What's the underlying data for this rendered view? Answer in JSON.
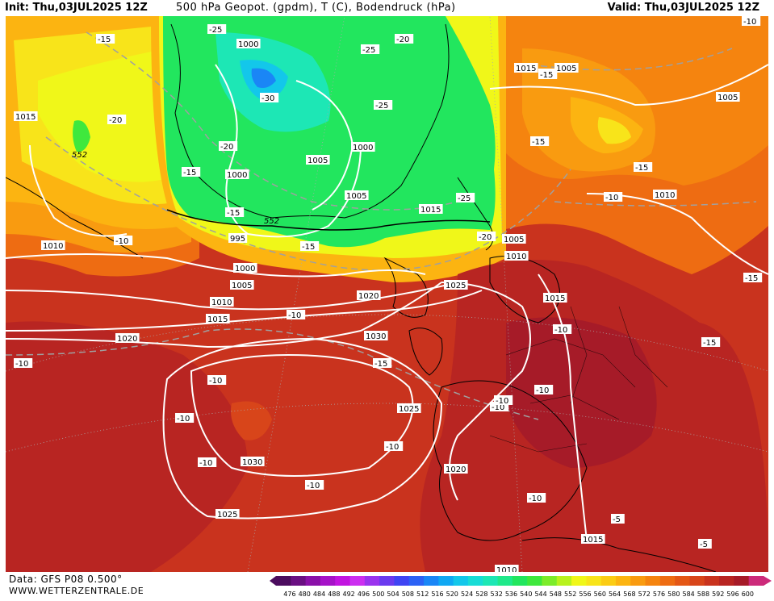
{
  "header": {
    "init": "Init: Thu,03JUL2025 12Z",
    "title": "500 hPa Geopot. (gpdm), T (C), Bodendruck (hPa)",
    "valid": "Valid: Thu,03JUL2025 12Z"
  },
  "footer": {
    "data_source": "Data: GFS P08 0.500°",
    "website": "WWW.WETTERZENTRALE.DE"
  },
  "legend": {
    "ticks": [
      "476",
      "480",
      "484",
      "488",
      "492",
      "496",
      "500",
      "504",
      "508",
      "512",
      "516",
      "520",
      "524",
      "528",
      "532",
      "536",
      "540",
      "544",
      "548",
      "552",
      "556",
      "560",
      "564",
      "568",
      "572",
      "576",
      "580",
      "584",
      "588",
      "592",
      "596",
      "600"
    ],
    "colors": [
      "#4b0c5e",
      "#6a0f82",
      "#8a10a8",
      "#a612c8",
      "#c214e0",
      "#cc2ef0",
      "#9a33ee",
      "#6a3aef",
      "#3f44f3",
      "#2c62f5",
      "#1a86f6",
      "#10a8f3",
      "#13c7ea",
      "#18dcd6",
      "#1de7b5",
      "#1fe98a",
      "#22e65e",
      "#3fe83d",
      "#7cec2a",
      "#b8f21e",
      "#f0f719",
      "#f8e41a",
      "#fbcc14",
      "#fcb411",
      "#f99b10",
      "#f5840f",
      "#ee6c12",
      "#e45716",
      "#d8451a",
      "#c9331e",
      "#b82522",
      "#a61b28",
      "#cc2a7a"
    ]
  },
  "map": {
    "pressure_labels": [
      {
        "t": "1000"
      },
      {
        "t": "1015"
      },
      {
        "t": "1005"
      },
      {
        "t": "1005"
      },
      {
        "t": "1000"
      },
      {
        "t": "1005"
      },
      {
        "t": "1000"
      },
      {
        "t": "1005"
      },
      {
        "t": "1015"
      },
      {
        "t": "1010"
      },
      {
        "t": "995"
      },
      {
        "t": "1000"
      },
      {
        "t": "1005"
      },
      {
        "t": "1010"
      },
      {
        "t": "1015"
      },
      {
        "t": "1020"
      },
      {
        "t": "1020"
      },
      {
        "t": "1025"
      },
      {
        "t": "1030"
      },
      {
        "t": "1005"
      },
      {
        "t": "1010"
      },
      {
        "t": "1015"
      },
      {
        "t": "1010"
      },
      {
        "t": "1015"
      },
      {
        "t": "1025"
      },
      {
        "t": "1030"
      },
      {
        "t": "1025"
      },
      {
        "t": "1020"
      },
      {
        "t": "1015"
      },
      {
        "t": "1010"
      }
    ],
    "temperature_labels": [
      {
        "t": "-25"
      },
      {
        "t": "-15"
      },
      {
        "t": "-20"
      },
      {
        "t": "-25"
      },
      {
        "t": "-20"
      },
      {
        "t": "-30"
      },
      {
        "t": "-25"
      },
      {
        "t": "-20"
      },
      {
        "t": "-15"
      },
      {
        "t": "-20"
      },
      {
        "t": "-15"
      },
      {
        "t": "-25"
      },
      {
        "t": "-15"
      },
      {
        "t": "-15"
      },
      {
        "t": "-15"
      },
      {
        "t": "-10"
      },
      {
        "t": "-20"
      },
      {
        "t": "-10"
      },
      {
        "t": "-15"
      },
      {
        "t": "-10"
      },
      {
        "t": "-15"
      },
      {
        "t": "-15"
      },
      {
        "t": "-10"
      },
      {
        "t": "-10"
      },
      {
        "t": "-10"
      },
      {
        "t": "-10"
      },
      {
        "t": "-10"
      },
      {
        "t": "-10"
      },
      {
        "t": "-10"
      },
      {
        "t": "-10"
      },
      {
        "t": "-10"
      },
      {
        "t": "-10"
      },
      {
        "t": "-10"
      },
      {
        "t": "-5"
      },
      {
        "t": "-5"
      },
      {
        "t": "-15"
      },
      {
        "t": "-10"
      }
    ],
    "height_labels": [
      {
        "t": "552"
      },
      {
        "t": "552"
      }
    ]
  }
}
